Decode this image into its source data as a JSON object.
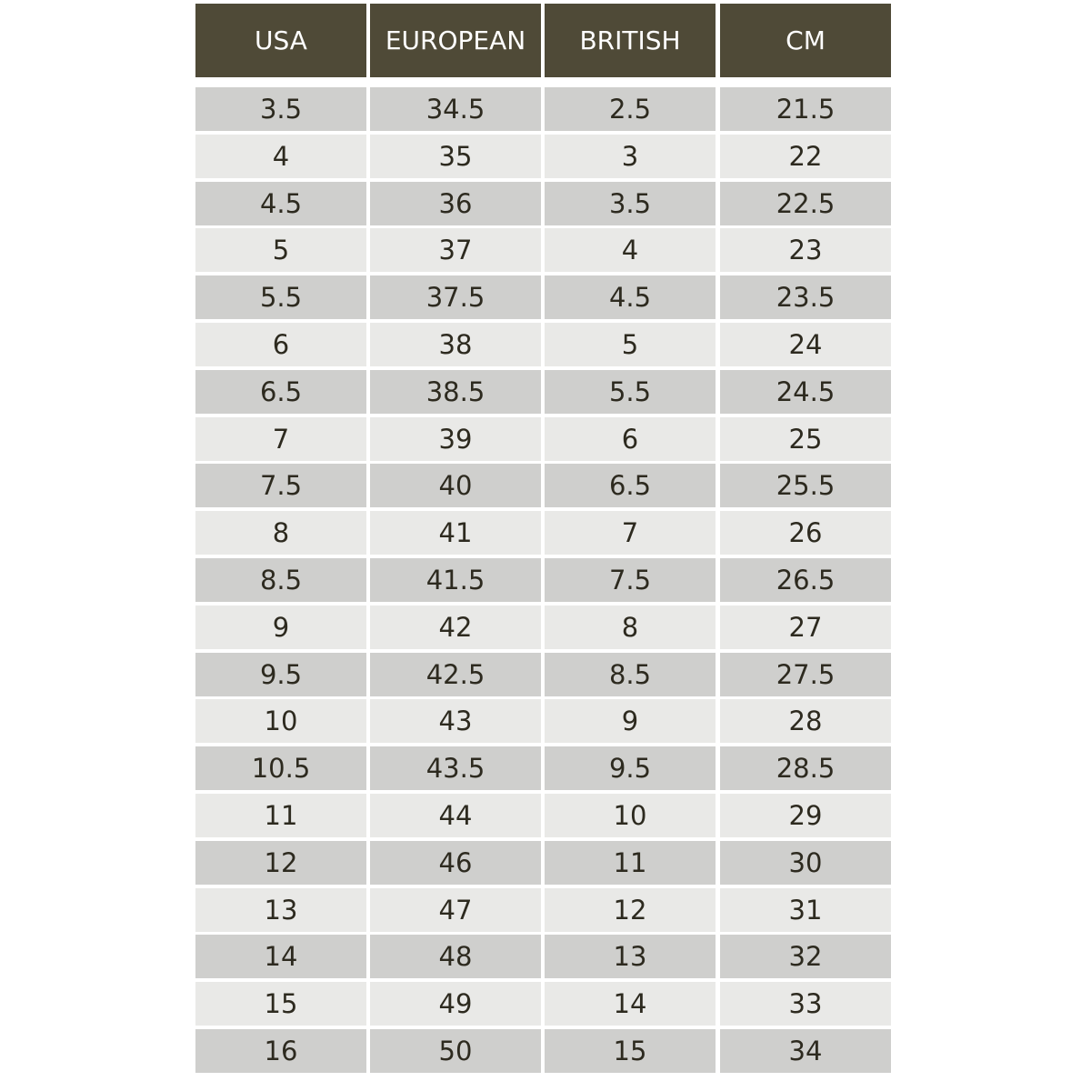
{
  "table": {
    "headers": [
      "USA",
      "EUROPEAN",
      "BRITISH",
      "CM"
    ],
    "rows": [
      [
        "3.5",
        "34.5",
        "2.5",
        "21.5"
      ],
      [
        "4",
        "35",
        "3",
        "22"
      ],
      [
        "4.5",
        "36",
        "3.5",
        "22.5"
      ],
      [
        "5",
        "37",
        "4",
        "23"
      ],
      [
        "5.5",
        "37.5",
        "4.5",
        "23.5"
      ],
      [
        "6",
        "38",
        "5",
        "24"
      ],
      [
        "6.5",
        "38.5",
        "5.5",
        "24.5"
      ],
      [
        "7",
        "39",
        "6",
        "25"
      ],
      [
        "7.5",
        "40",
        "6.5",
        "25.5"
      ],
      [
        "8",
        "41",
        "7",
        "26"
      ],
      [
        "8.5",
        "41.5",
        "7.5",
        "26.5"
      ],
      [
        "9",
        "42",
        "8",
        "27"
      ],
      [
        "9.5",
        "42.5",
        "8.5",
        "27.5"
      ],
      [
        "10",
        "43",
        "9",
        "28"
      ],
      [
        "10.5",
        "43.5",
        "9.5",
        "28.5"
      ],
      [
        "11",
        "44",
        "10",
        "29"
      ],
      [
        "12",
        "46",
        "11",
        "30"
      ],
      [
        "13",
        "47",
        "12",
        "31"
      ],
      [
        "14",
        "48",
        "13",
        "32"
      ],
      [
        "15",
        "49",
        "14",
        "33"
      ],
      [
        "16",
        "50",
        "15",
        "34"
      ]
    ]
  }
}
